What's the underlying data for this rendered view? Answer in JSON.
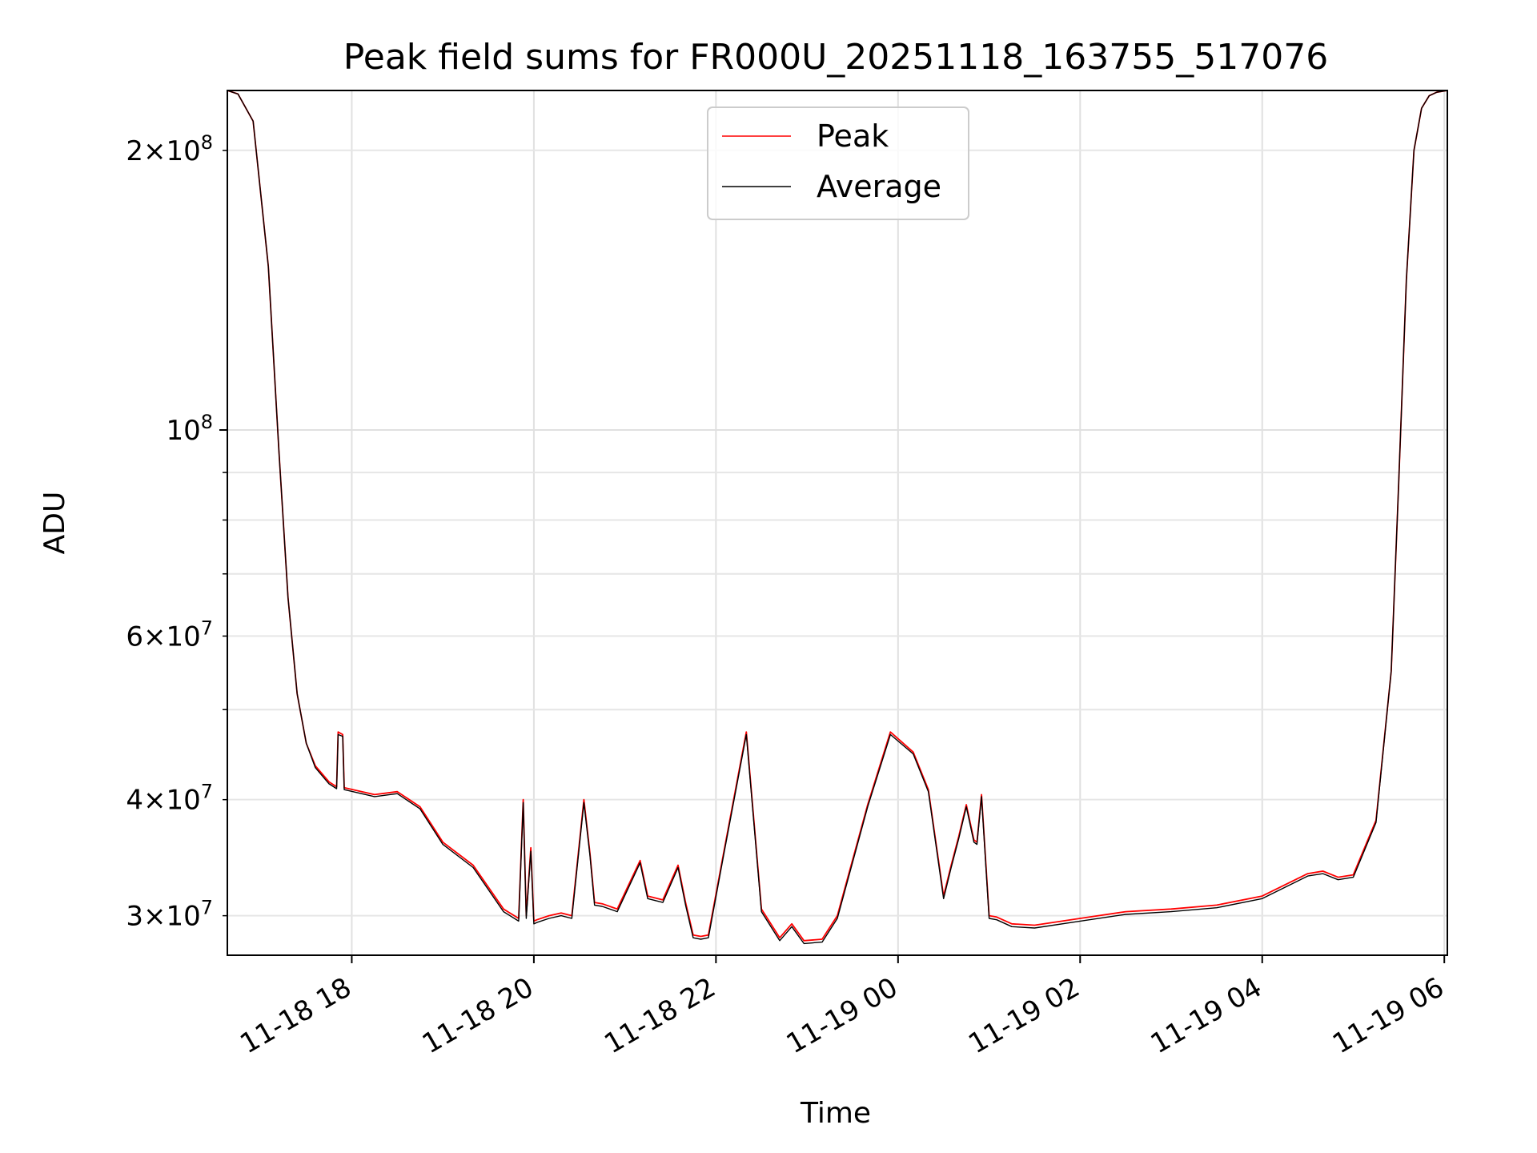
{
  "chart_data": {
    "type": "line",
    "title": "Peak field sums for FR000U_20251118_163755_517076",
    "xlabel": "Time",
    "ylabel": "ADU",
    "yscale": "log",
    "ylim": [
      27200000,
      232000000
    ],
    "xlim": [
      "2025-11-18 16:38",
      "2025-11-19 06:02"
    ],
    "grid": true,
    "legend_position": "top-center",
    "x_tick_labels": [
      "11-18 18",
      "11-18 20",
      "11-18 22",
      "11-19 00",
      "11-19 02",
      "11-19 04",
      "11-19 06"
    ],
    "x_ticks": [
      "2025-11-18 18:00",
      "2025-11-18 20:00",
      "2025-11-18 22:00",
      "2025-11-19 00:00",
      "2025-11-19 02:00",
      "2025-11-19 04:00",
      "2025-11-19 06:00"
    ],
    "y_major_ticks": [
      {
        "value": 100000000,
        "base": "10",
        "exp": "8",
        "mant": ""
      }
    ],
    "y_minor_ticks": [
      {
        "value": 30000000,
        "mant": "3",
        "base": "10",
        "exp": "7"
      },
      {
        "value": 40000000,
        "mant": "4",
        "base": "10",
        "exp": "7"
      },
      {
        "value": 60000000,
        "mant": "6",
        "base": "10",
        "exp": "7"
      },
      {
        "value": 200000000,
        "mant": "2",
        "base": "10",
        "exp": "8"
      }
    ],
    "y_minor_unlabeled": [
      50000000,
      70000000,
      80000000,
      90000000
    ],
    "series": [
      {
        "name": "Peak",
        "color": "#ff0000",
        "x": [
          "2025-11-18 16:38",
          "2025-11-18 16:45",
          "2025-11-18 16:55",
          "2025-11-18 17:05",
          "2025-11-18 17:12",
          "2025-11-18 17:18",
          "2025-11-18 17:24",
          "2025-11-18 17:30",
          "2025-11-18 17:36",
          "2025-11-18 17:45",
          "2025-11-18 17:50",
          "2025-11-18 17:51",
          "2025-11-18 17:54",
          "2025-11-18 17:55",
          "2025-11-18 18:15",
          "2025-11-18 18:30",
          "2025-11-18 18:45",
          "2025-11-18 19:00",
          "2025-11-18 19:20",
          "2025-11-18 19:40",
          "2025-11-18 19:50",
          "2025-11-18 19:53",
          "2025-11-18 19:55",
          "2025-11-18 19:58",
          "2025-11-18 20:00",
          "2025-11-18 20:02",
          "2025-11-18 20:10",
          "2025-11-18 20:18",
          "2025-11-18 20:25",
          "2025-11-18 20:33",
          "2025-11-18 20:37",
          "2025-11-18 20:40",
          "2025-11-18 20:45",
          "2025-11-18 20:55",
          "2025-11-18 21:10",
          "2025-11-18 21:15",
          "2025-11-18 21:25",
          "2025-11-18 21:35",
          "2025-11-18 21:40",
          "2025-11-18 21:45",
          "2025-11-18 21:50",
          "2025-11-18 21:55",
          "2025-11-18 22:05",
          "2025-11-18 22:20",
          "2025-11-18 22:30",
          "2025-11-18 22:42",
          "2025-11-18 22:50",
          "2025-11-18 22:58",
          "2025-11-18 23:10",
          "2025-11-18 23:20",
          "2025-11-18 23:40",
          "2025-11-18 23:55",
          "2025-11-19 00:10",
          "2025-11-19 00:20",
          "2025-11-19 00:30",
          "2025-11-19 00:35",
          "2025-11-19 00:40",
          "2025-11-19 00:45",
          "2025-11-19 00:50",
          "2025-11-19 00:52",
          "2025-11-19 00:55",
          "2025-11-19 01:00",
          "2025-11-19 01:05",
          "2025-11-19 01:15",
          "2025-11-19 01:30",
          "2025-11-19 02:00",
          "2025-11-19 02:30",
          "2025-11-19 03:00",
          "2025-11-19 03:30",
          "2025-11-19 04:00",
          "2025-11-19 04:30",
          "2025-11-19 04:40",
          "2025-11-19 04:50",
          "2025-11-19 05:00",
          "2025-11-19 05:15",
          "2025-11-19 05:25",
          "2025-11-19 05:30",
          "2025-11-19 05:35",
          "2025-11-19 05:40",
          "2025-11-19 05:45",
          "2025-11-19 05:50",
          "2025-11-19 05:55",
          "2025-11-19 06:02"
        ],
        "y": [
          232000000,
          230000000,
          215000000,
          150000000,
          95000000,
          66000000,
          52000000,
          46000000,
          43500000,
          41800000,
          41300000,
          47300000,
          47000000,
          41200000,
          40500000,
          40800000,
          39300000,
          36000000,
          34000000,
          30500000,
          29800000,
          40000000,
          30000000,
          35500000,
          29600000,
          29700000,
          30000000,
          30200000,
          30000000,
          40000000,
          35000000,
          31000000,
          30900000,
          30500000,
          34400000,
          31500000,
          31200000,
          34000000,
          31000000,
          28600000,
          28500000,
          28600000,
          35000000,
          47300000,
          30500000,
          28400000,
          29400000,
          28200000,
          28300000,
          30000000,
          39500000,
          47300000,
          45000000,
          41000000,
          31500000,
          34000000,
          36500000,
          39500000,
          36200000,
          36000000,
          40500000,
          30000000,
          29900000,
          29400000,
          29300000,
          29800000,
          30300000,
          30500000,
          30800000,
          31500000,
          33300000,
          33500000,
          33000000,
          33200000,
          38000000,
          55000000,
          88000000,
          145000000,
          200000000,
          222000000,
          229000000,
          231000000,
          232000000
        ]
      },
      {
        "name": "Average",
        "color": "#000000",
        "x": [
          "2025-11-18 16:38",
          "2025-11-18 16:45",
          "2025-11-18 16:55",
          "2025-11-18 17:05",
          "2025-11-18 17:12",
          "2025-11-18 17:18",
          "2025-11-18 17:24",
          "2025-11-18 17:30",
          "2025-11-18 17:36",
          "2025-11-18 17:45",
          "2025-11-18 17:50",
          "2025-11-18 17:51",
          "2025-11-18 17:54",
          "2025-11-18 17:55",
          "2025-11-18 18:15",
          "2025-11-18 18:30",
          "2025-11-18 18:45",
          "2025-11-18 19:00",
          "2025-11-18 19:20",
          "2025-11-18 19:40",
          "2025-11-18 19:50",
          "2025-11-18 19:53",
          "2025-11-18 19:55",
          "2025-11-18 19:58",
          "2025-11-18 20:00",
          "2025-11-18 20:02",
          "2025-11-18 20:10",
          "2025-11-18 20:18",
          "2025-11-18 20:25",
          "2025-11-18 20:33",
          "2025-11-18 20:37",
          "2025-11-18 20:40",
          "2025-11-18 20:45",
          "2025-11-18 20:55",
          "2025-11-18 21:10",
          "2025-11-18 21:15",
          "2025-11-18 21:25",
          "2025-11-18 21:35",
          "2025-11-18 21:40",
          "2025-11-18 21:45",
          "2025-11-18 21:50",
          "2025-11-18 21:55",
          "2025-11-18 22:05",
          "2025-11-18 22:20",
          "2025-11-18 22:30",
          "2025-11-18 22:42",
          "2025-11-18 22:50",
          "2025-11-18 22:58",
          "2025-11-18 23:10",
          "2025-11-18 23:20",
          "2025-11-18 23:40",
          "2025-11-18 23:55",
          "2025-11-19 00:10",
          "2025-11-19 00:20",
          "2025-11-19 00:30",
          "2025-11-19 00:35",
          "2025-11-19 00:40",
          "2025-11-19 00:45",
          "2025-11-19 00:50",
          "2025-11-19 00:52",
          "2025-11-19 00:55",
          "2025-11-19 01:00",
          "2025-11-19 01:05",
          "2025-11-19 01:15",
          "2025-11-19 01:30",
          "2025-11-19 02:00",
          "2025-11-19 02:30",
          "2025-11-19 03:00",
          "2025-11-19 03:30",
          "2025-11-19 04:00",
          "2025-11-19 04:30",
          "2025-11-19 04:40",
          "2025-11-19 04:50",
          "2025-11-19 05:00",
          "2025-11-19 05:15",
          "2025-11-19 05:25",
          "2025-11-19 05:30",
          "2025-11-19 05:35",
          "2025-11-19 05:40",
          "2025-11-19 05:45",
          "2025-11-19 05:50",
          "2025-11-19 05:55",
          "2025-11-19 06:02"
        ],
        "y": [
          232000000,
          230000000,
          215000000,
          150000000,
          95000000,
          66000000,
          52000000,
          46000000,
          43300000,
          41600000,
          41100000,
          47000000,
          46800000,
          41000000,
          40300000,
          40600000,
          39100000,
          35800000,
          33800000,
          30300000,
          29600000,
          39700000,
          29800000,
          35200000,
          29400000,
          29500000,
          29800000,
          30000000,
          29800000,
          39700000,
          34800000,
          30800000,
          30700000,
          30300000,
          34200000,
          31300000,
          31000000,
          33800000,
          30800000,
          28400000,
          28300000,
          28400000,
          34800000,
          47000000,
          30300000,
          28200000,
          29200000,
          28000000,
          28100000,
          29800000,
          39300000,
          47000000,
          44800000,
          40800000,
          31300000,
          33800000,
          36300000,
          39300000,
          36000000,
          35800000,
          40300000,
          29800000,
          29700000,
          29200000,
          29100000,
          29600000,
          30100000,
          30300000,
          30600000,
          31300000,
          33100000,
          33300000,
          32800000,
          33000000,
          37800000,
          55000000,
          88000000,
          145000000,
          200000000,
          222000000,
          229000000,
          231000000,
          232000000
        ]
      }
    ]
  }
}
